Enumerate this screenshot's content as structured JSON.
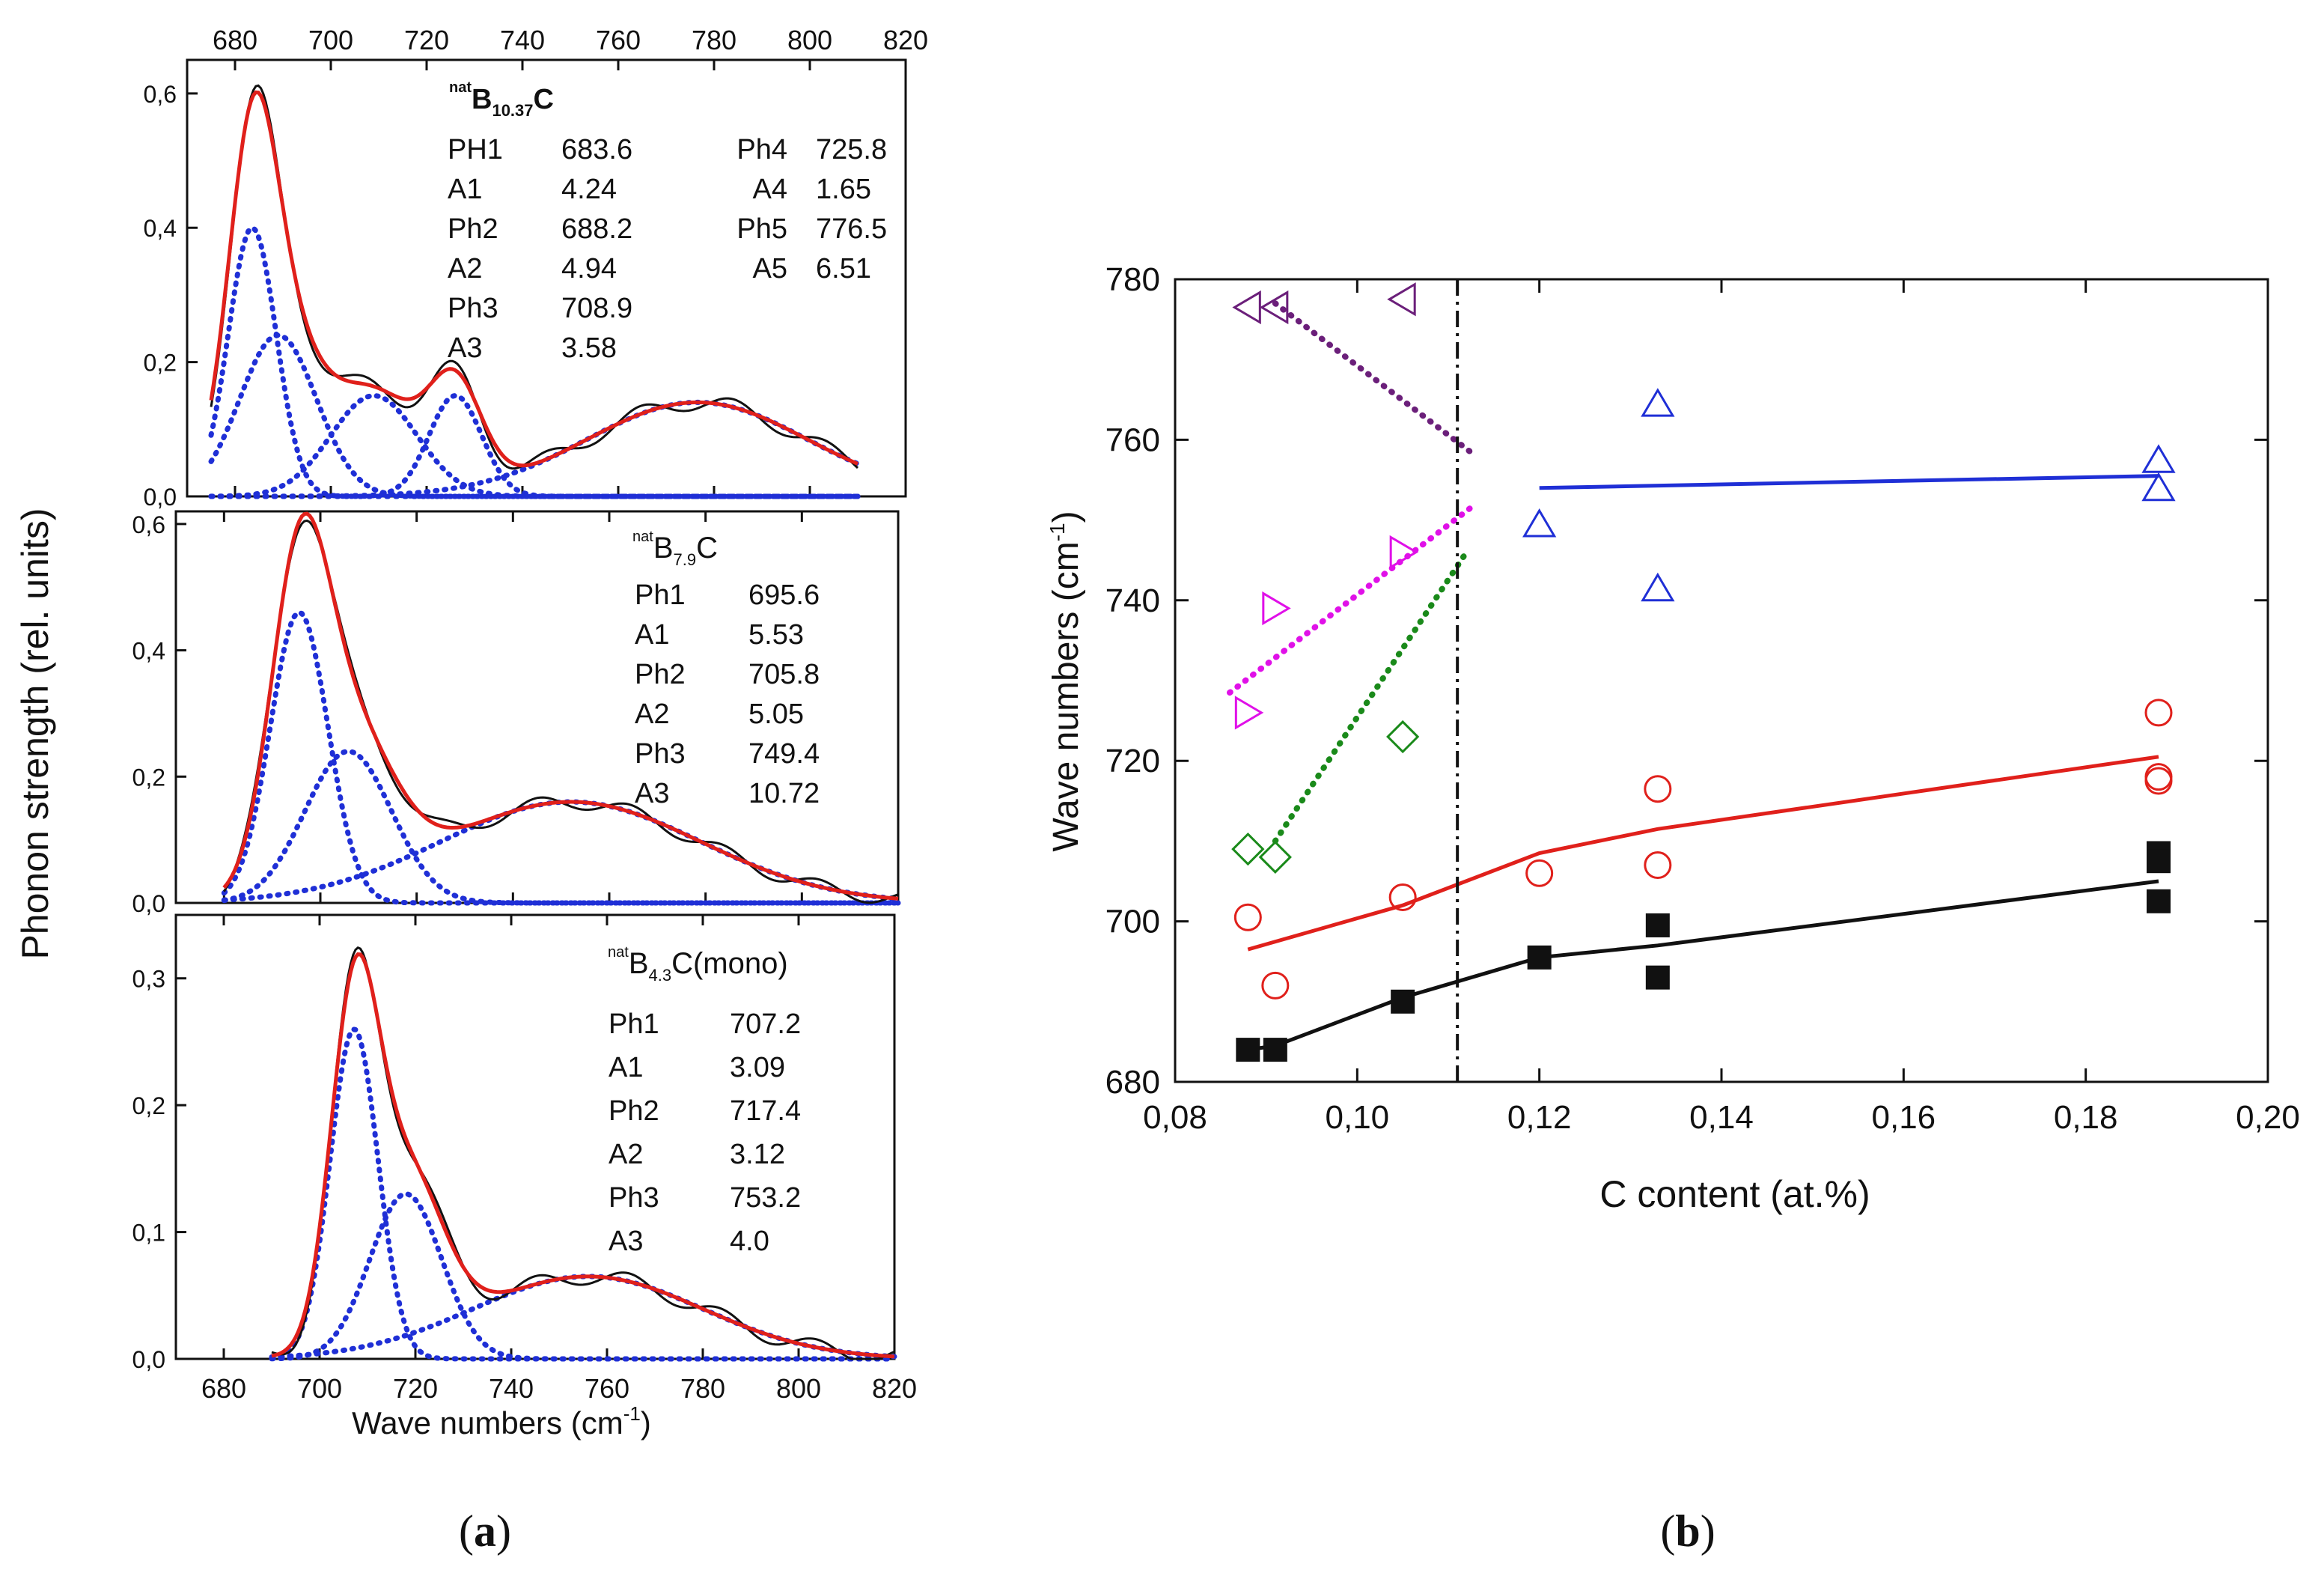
{
  "colors": {
    "red": "#e0201b",
    "blue_dotted": "#1f2fd6",
    "black": "#111111",
    "blue_line": "#1f2fd6",
    "purple": "#6b1f7a",
    "magenta": "#e010e8",
    "green": "#1a8a1a",
    "open_red": "#e0201b",
    "open_blue": "#1f2fd6",
    "open_green": "#1a8a1a"
  },
  "panel_a": {
    "caption": "a",
    "ylabel": "Phonon strength (rel. units)",
    "xlabel": "Wave numbers (cm",
    "xlabel_sup": "-1",
    "xlabel_close": ")",
    "xlim": [
      670,
      820
    ],
    "xticks": [
      "680",
      "700",
      "720",
      "740",
      "760",
      "780",
      "800",
      "820"
    ],
    "subplots": [
      {
        "label_pre": "nat",
        "label_main": "B",
        "label_sub": "10.37",
        "label_post": "C",
        "ylim": [
          0,
          0.65
        ],
        "yticks": [
          "0,0",
          "0,2",
          "0,4",
          "0,6"
        ],
        "ytick_values": [
          0,
          0.2,
          0.4,
          0.6
        ],
        "params": [
          {
            "name": "PH1",
            "value": "683.6"
          },
          {
            "name": "A1",
            "value": "4.24"
          },
          {
            "name": "Ph2",
            "value": "688.2"
          },
          {
            "name": "A2",
            "value": "4.94"
          },
          {
            "name": "Ph3",
            "value": "708.9"
          },
          {
            "name": "A3",
            "value": "3.58"
          }
        ],
        "params2": [
          {
            "name": "Ph4",
            "value": "725.8"
          },
          {
            "name": "A4",
            "value": "1.65"
          },
          {
            "name": "Ph5",
            "value": "776.5"
          },
          {
            "name": "A5",
            "value": "6.51"
          }
        ],
        "components": [
          {
            "center": 683.6,
            "amp": 0.4,
            "width": 5
          },
          {
            "center": 689,
            "amp": 0.24,
            "width": 8
          },
          {
            "center": 709,
            "amp": 0.15,
            "width": 9
          },
          {
            "center": 726,
            "amp": 0.15,
            "width": 5.5
          },
          {
            "center": 776.5,
            "amp": 0.14,
            "width": 23
          }
        ],
        "range": [
          675,
          810
        ]
      },
      {
        "label_pre": "nat",
        "label_main": "B",
        "label_sub": "7.9",
        "label_post": "C",
        "ylim": [
          0,
          0.62
        ],
        "yticks": [
          "0,0",
          "0,2",
          "0,4",
          "0,6"
        ],
        "ytick_values": [
          0,
          0.2,
          0.4,
          0.6
        ],
        "params": [
          {
            "name": "Ph1",
            "value": "695.6"
          },
          {
            "name": "A1",
            "value": "5.53"
          },
          {
            "name": "Ph2",
            "value": "705.8"
          },
          {
            "name": "A2",
            "value": "5.05"
          },
          {
            "name": "Ph3",
            "value": "749.4"
          },
          {
            "name": "A3",
            "value": "10.72"
          }
        ],
        "params2": [],
        "components": [
          {
            "center": 695.6,
            "amp": 0.46,
            "width": 6
          },
          {
            "center": 705.8,
            "amp": 0.24,
            "width": 9
          },
          {
            "center": 752,
            "amp": 0.16,
            "width": 27
          }
        ],
        "range": [
          680,
          820
        ]
      },
      {
        "label_pre": "nat",
        "label_main": "B",
        "label_sub": "4.3",
        "label_post": "C(mono)",
        "ylim": [
          0,
          0.35
        ],
        "yticks": [
          "0,0",
          "0,1",
          "0,2",
          "0,3"
        ],
        "ytick_values": [
          0,
          0.1,
          0.2,
          0.3
        ],
        "params": [
          {
            "name": "Ph1",
            "value": "707.2"
          },
          {
            "name": "A1",
            "value": "3.09"
          },
          {
            "name": "Ph2",
            "value": "717.4"
          },
          {
            "name": "A2",
            "value": "3.12"
          },
          {
            "name": "Ph3",
            "value": "753.2"
          },
          {
            "name": "A3",
            "value": "4.0"
          }
        ],
        "params2": [],
        "components": [
          {
            "center": 707.2,
            "amp": 0.26,
            "width": 5
          },
          {
            "center": 718,
            "amp": 0.13,
            "width": 7.5
          },
          {
            "center": 756,
            "amp": 0.065,
            "width": 24
          }
        ],
        "range": [
          690,
          820
        ]
      }
    ]
  },
  "chart_data": {
    "type": "scatter",
    "title": "",
    "caption": "b",
    "xlabel": "C content (at.%)",
    "ylabel": "Wave numbers (cm",
    "ylabel_sup": "-1",
    "ylabel_close": ")",
    "xlim": [
      0.08,
      0.2
    ],
    "ylim": [
      680,
      780
    ],
    "xticks": [
      "0,08",
      "0,10",
      "0,12",
      "0,14",
      "0,16",
      "0,18",
      "0,20"
    ],
    "xtick_values": [
      0.08,
      0.1,
      0.12,
      0.14,
      0.16,
      0.18,
      0.2
    ],
    "yticks": [
      "680",
      "700",
      "720",
      "740",
      "760",
      "780"
    ],
    "ytick_values": [
      680,
      700,
      720,
      740,
      760,
      780
    ],
    "vline_x": 0.111,
    "series": [
      {
        "name": "black squares",
        "marker": "square-filled",
        "color": "#111111",
        "x": [
          0.088,
          0.091,
          0.105,
          0.12,
          0.133,
          0.133,
          0.188,
          0.188,
          0.188
        ],
        "y": [
          684,
          684,
          690,
          695.5,
          699.5,
          693,
          708.5,
          707.5,
          702.5
        ]
      },
      {
        "name": "red circles",
        "marker": "circle-open",
        "color": "#e0201b",
        "x": [
          0.088,
          0.091,
          0.105,
          0.12,
          0.133,
          0.133,
          0.188,
          0.188,
          0.188
        ],
        "y": [
          700.5,
          692,
          703,
          706,
          716.5,
          707,
          726,
          718,
          717.5
        ]
      },
      {
        "name": "green diamonds",
        "marker": "diamond-open",
        "color": "#1a8a1a",
        "x": [
          0.088,
          0.091,
          0.105
        ],
        "y": [
          709,
          708,
          723
        ]
      },
      {
        "name": "magenta right triangles",
        "marker": "triangle-right-open",
        "color": "#e010e8",
        "x": [
          0.088,
          0.091,
          0.105
        ],
        "y": [
          726,
          739,
          746
        ]
      },
      {
        "name": "purple left triangles",
        "marker": "triangle-left-open",
        "color": "#6b1f7a",
        "x": [
          0.088,
          0.091,
          0.105
        ],
        "y": [
          776.5,
          776.5,
          777.5
        ]
      },
      {
        "name": "blue up triangles",
        "marker": "triangle-up-open",
        "color": "#1f2fd6",
        "x": [
          0.12,
          0.133,
          0.133,
          0.188,
          0.188
        ],
        "y": [
          749.5,
          764.5,
          741.5,
          757.5,
          754
        ]
      }
    ],
    "fits": [
      {
        "name": "black fit",
        "style": "solid",
        "color": "#111111",
        "x": [
          0.088,
          0.091,
          0.105,
          0.12,
          0.133,
          0.188
        ],
        "y": [
          684,
          684.5,
          690.5,
          695.5,
          697,
          705
        ]
      },
      {
        "name": "red fit",
        "style": "solid",
        "color": "#e0201b",
        "x": [
          0.088,
          0.105,
          0.12,
          0.133,
          0.188
        ],
        "y": [
          696.5,
          702,
          708.5,
          711.5,
          720.5
        ]
      },
      {
        "name": "blue fit",
        "style": "solid",
        "color": "#1f2fd6",
        "x": [
          0.12,
          0.188
        ],
        "y": [
          754,
          755.5
        ]
      },
      {
        "name": "purple fit",
        "style": "dotted",
        "color": "#6b1f7a",
        "x": [
          0.091,
          0.113
        ],
        "y": [
          777,
          758
        ]
      },
      {
        "name": "magenta fit",
        "style": "dotted",
        "color": "#e010e8",
        "x": [
          0.086,
          0.113
        ],
        "y": [
          728.5,
          752
        ]
      },
      {
        "name": "green fit",
        "style": "dotted",
        "color": "#1a8a1a",
        "x": [
          0.091,
          0.112
        ],
        "y": [
          710,
          746
        ]
      }
    ]
  }
}
